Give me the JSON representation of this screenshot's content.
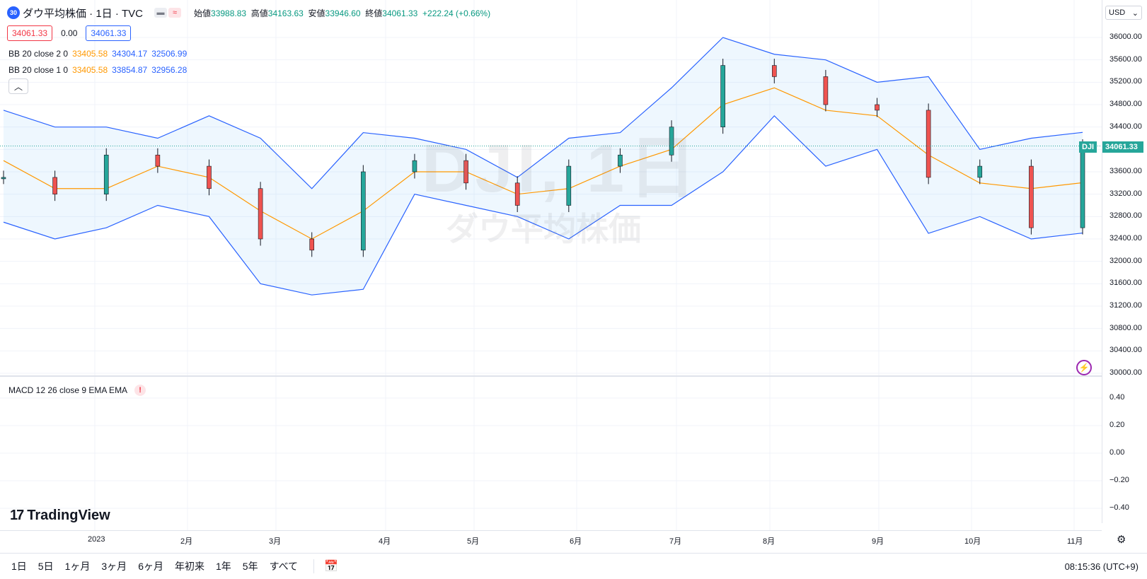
{
  "symbol": {
    "badge": "30",
    "title": "ダウ平均株価 · 1日 · TVC",
    "ohlc": {
      "open_label": "始値",
      "open": "33988.83",
      "high_label": "高値",
      "high": "34163.63",
      "low_label": "安値",
      "low": "33946.60",
      "close_label": "終値",
      "close": "34061.33",
      "change": "+222.24 (+0.66%)"
    },
    "bid": "34061.33",
    "spread": "0.00",
    "ask": "34061.33"
  },
  "indicators": [
    {
      "name": "BB 20 close 2 0",
      "basis": "33405.58",
      "upper": "34304.17",
      "lower": "32506.99"
    },
    {
      "name": "BB 20 close 1 0",
      "basis": "33405.58",
      "upper": "33854.87",
      "lower": "32956.28"
    }
  ],
  "macd": {
    "name": "MACD 12 26 close 9 EMA EMA",
    "warn": "!"
  },
  "price_scale": {
    "currency": "USD",
    "labels": [
      "36000.00",
      "35600.00",
      "35200.00",
      "34800.00",
      "34400.00",
      "34000.00",
      "33600.00",
      "33200.00",
      "32800.00",
      "32400.00",
      "32000.00",
      "31600.00",
      "31200.00",
      "30800.00",
      "30400.00",
      "30000.00"
    ],
    "current_tag_symbol": "DJI",
    "current_tag_price": "34061.33",
    "macd_labels": [
      "0.40",
      "0.20",
      "0.00",
      "−0.20",
      "−0.40"
    ]
  },
  "time_axis": [
    "2023",
    "2月",
    "3月",
    "4月",
    "5月",
    "6月",
    "7月",
    "8月",
    "9月",
    "10月",
    "11月"
  ],
  "watermark": {
    "line1": "DJI, 1日",
    "line2": "ダウ平均株価"
  },
  "brand": "TradingView",
  "ranges": [
    "1日",
    "5日",
    "1ヶ月",
    "3ヶ月",
    "6ヶ月",
    "年初来",
    "1年",
    "5年",
    "すべて"
  ],
  "clock": "08:15:36 (UTC+9)",
  "colors": {
    "up": "#26a69a",
    "down": "#ef5350",
    "basis": "#ff9800",
    "band": "#2962ff",
    "accent": "#2962ff"
  },
  "chart_data": {
    "type": "line",
    "title": "",
    "ylim": [
      30000,
      36000
    ],
    "x": [
      "2022-12-21",
      "2023-01-05",
      "2023-01-20",
      "2023-02-06",
      "2023-02-22",
      "2023-03-09",
      "2023-03-24",
      "2023-04-10",
      "2023-04-25",
      "2023-05-10",
      "2023-05-25",
      "2023-06-09",
      "2023-06-26",
      "2023-07-12",
      "2023-07-27",
      "2023-08-11",
      "2023-08-28",
      "2023-09-13",
      "2023-09-28",
      "2023-10-13",
      "2023-10-30",
      "2023-11-03"
    ],
    "series": [
      {
        "name": "close",
        "values": [
          33500,
          33200,
          33900,
          33700,
          33300,
          32400,
          32200,
          33600,
          33800,
          33400,
          33000,
          33700,
          33900,
          34400,
          35500,
          35300,
          34800,
          34700,
          33500,
          33700,
          32600,
          34061
        ]
      },
      {
        "name": "BB basis",
        "values": [
          33800,
          33300,
          33300,
          33700,
          33500,
          32900,
          32400,
          32900,
          33600,
          33600,
          33200,
          33300,
          33700,
          34000,
          34800,
          35100,
          34700,
          34600,
          33900,
          33400,
          33300,
          33405
        ]
      },
      {
        "name": "BB upper 2",
        "values": [
          34700,
          34400,
          34400,
          34200,
          34600,
          34200,
          33300,
          34300,
          34200,
          34000,
          33500,
          34200,
          34300,
          35100,
          36000,
          35700,
          35600,
          35200,
          35300,
          34000,
          34200,
          34304
        ]
      },
      {
        "name": "BB lower 2",
        "values": [
          32700,
          32400,
          32600,
          33000,
          32800,
          31600,
          31400,
          31500,
          33200,
          33000,
          32800,
          32400,
          33000,
          33000,
          33600,
          34600,
          33700,
          34000,
          32500,
          32800,
          32400,
          32506
        ]
      }
    ]
  }
}
